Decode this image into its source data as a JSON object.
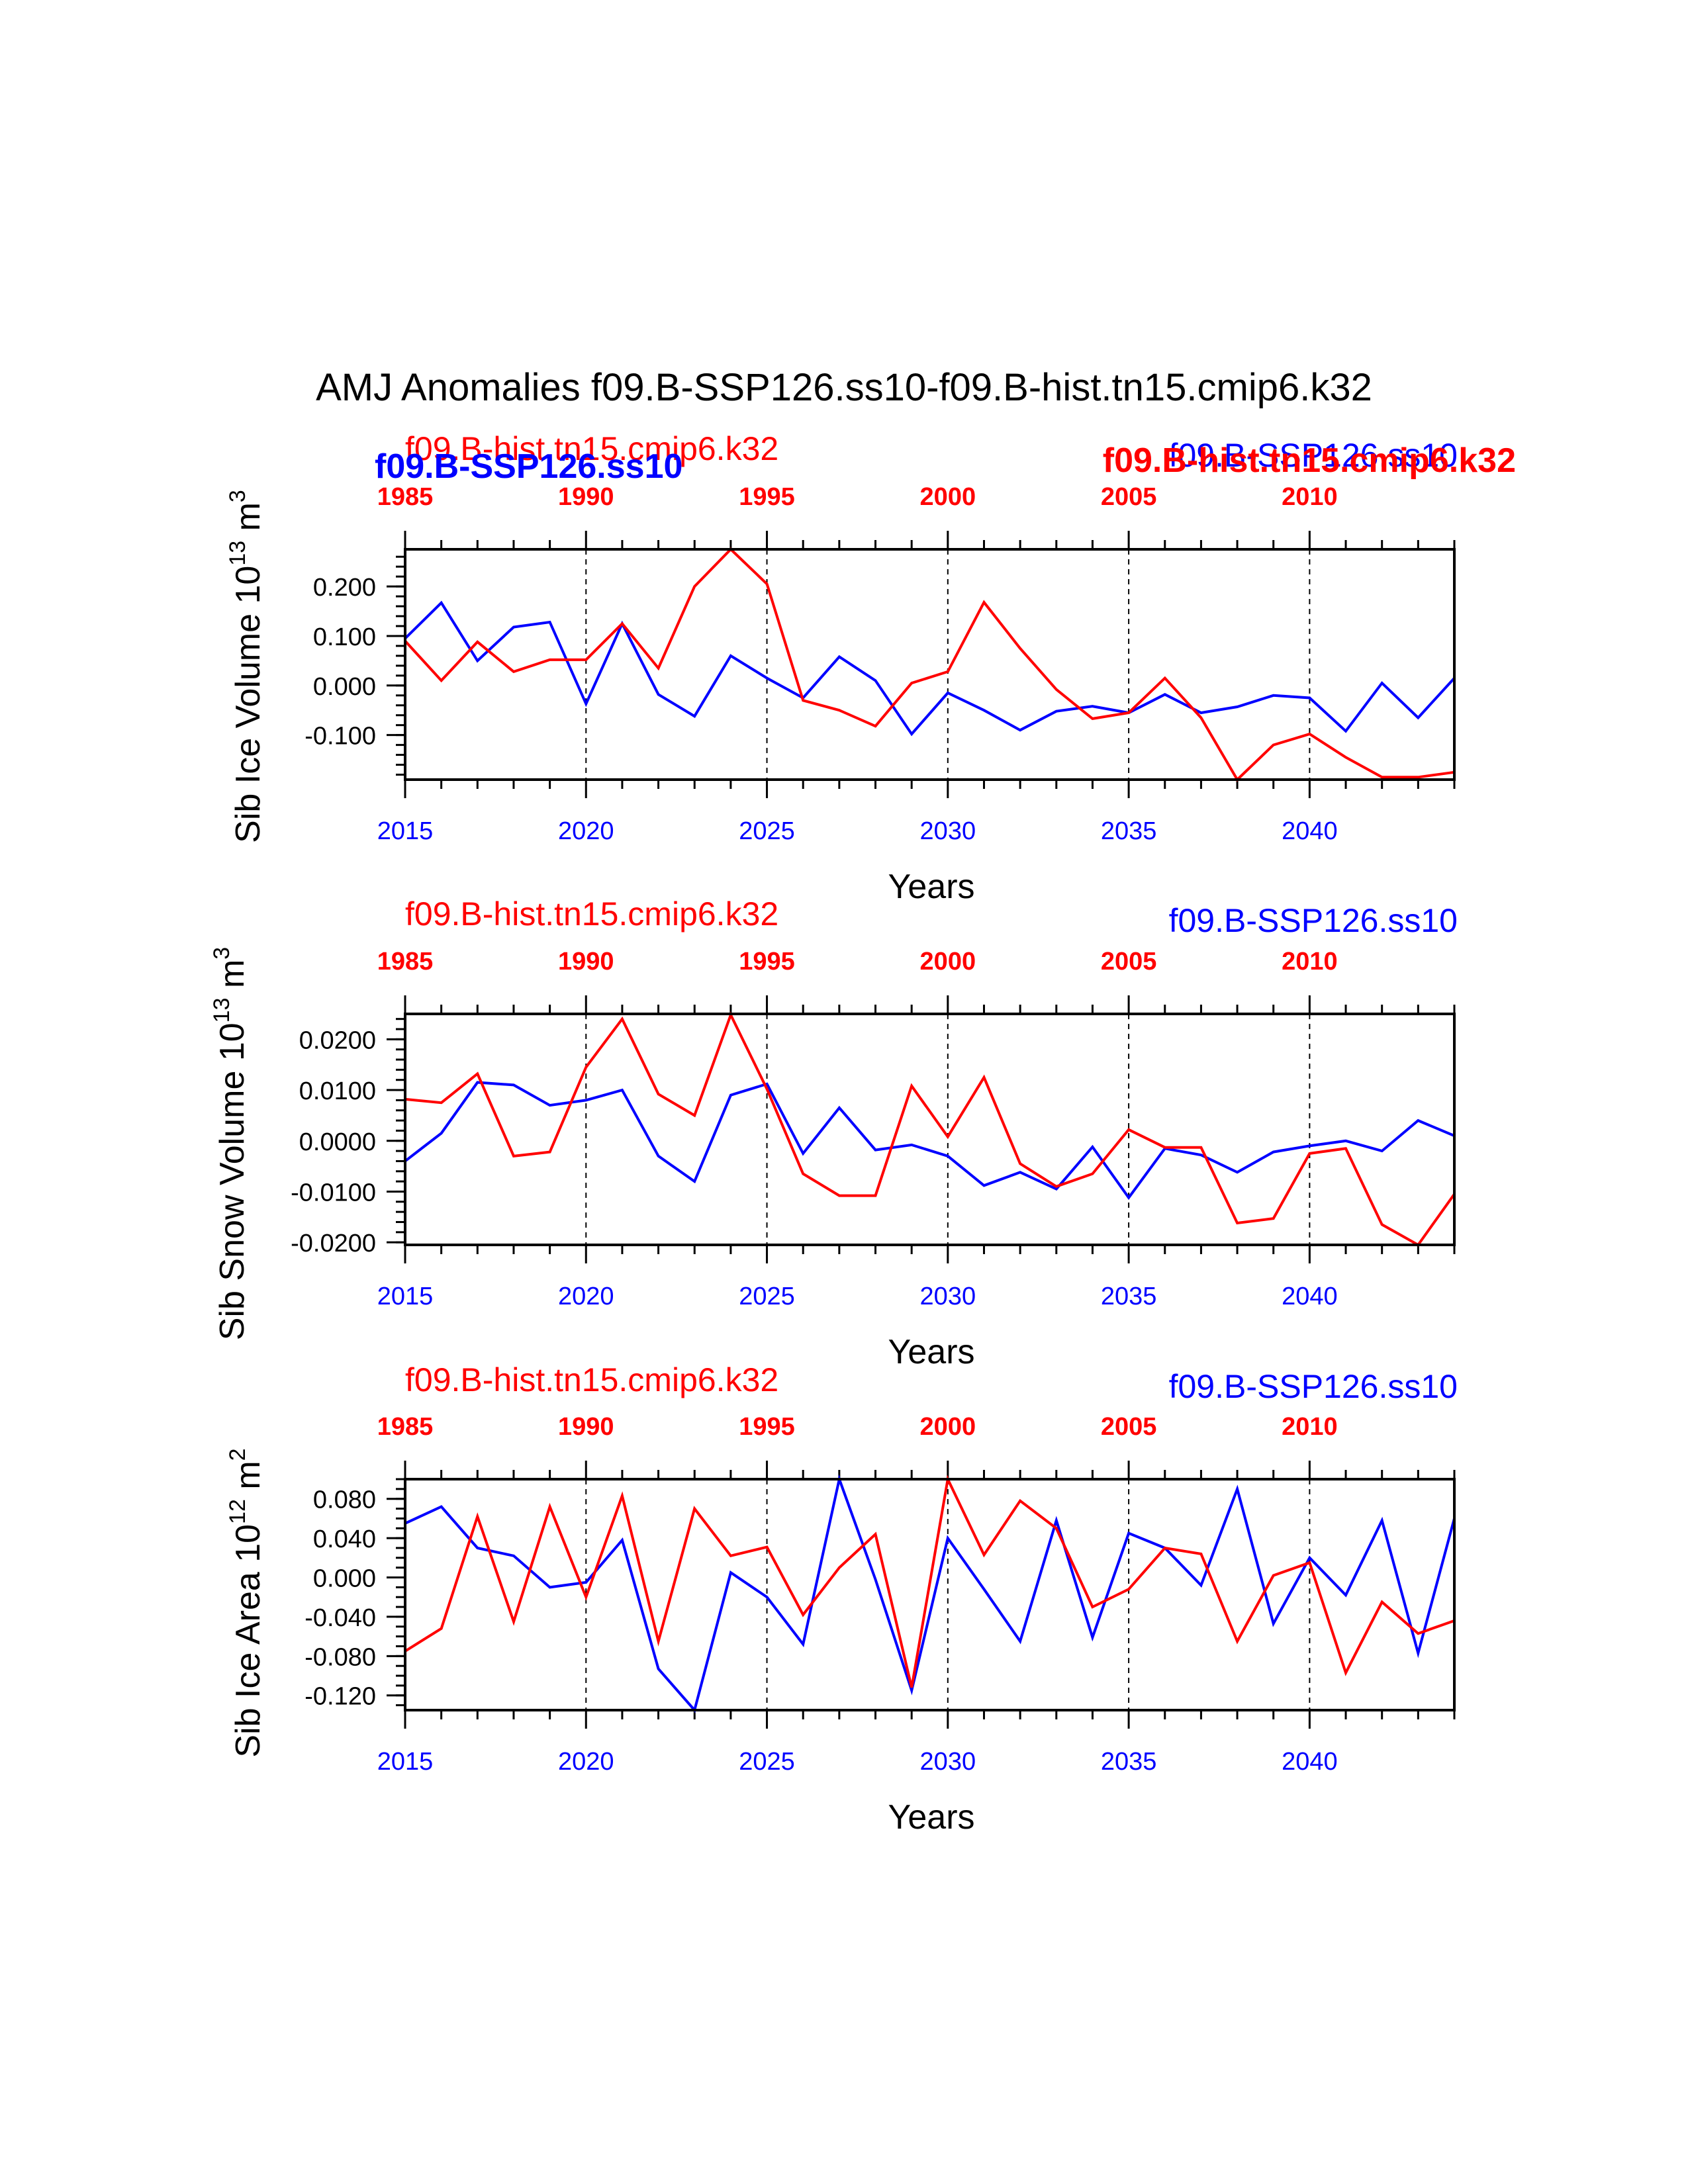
{
  "title": "AMJ Anomalies f09.B-SSP126.ss10-f09.B-hist.tn15.cmip6.k32",
  "colors": {
    "exp": "#0000ff",
    "ctrl": "#ff0000",
    "axis": "#000000"
  },
  "series_names": {
    "exp": "f09.B-SSP126.ss10",
    "ctrl": "f09.B-hist.tn15.cmip6.k32"
  },
  "xlabel": "Years",
  "bottom_ticks": [
    "2015",
    "2020",
    "2025",
    "2030",
    "2035",
    "2040"
  ],
  "top_ticks": [
    "1985",
    "1990",
    "1995",
    "2000",
    "2005",
    "2010"
  ],
  "chart_data": [
    {
      "type": "line",
      "ylabel_main": "Sib Ice Volume 10",
      "ylabel_exp": "13",
      "ylabel_unit": " m",
      "ylabel_unit_exp": "3",
      "x": [
        2015,
        2016,
        2017,
        2018,
        2019,
        2020,
        2021,
        2022,
        2023,
        2024,
        2025,
        2026,
        2027,
        2028,
        2029,
        2030,
        2031,
        2032,
        2033,
        2034,
        2035,
        2036,
        2037,
        2038,
        2039,
        2040,
        2041,
        2042,
        2043,
        2044
      ],
      "xlim": [
        2015,
        2044
      ],
      "ylim": [
        -0.19,
        0.275
      ],
      "yticks": [
        -0.1,
        0.0,
        0.1,
        0.2
      ],
      "ytick_labels": [
        "-0.100",
        "0.000",
        "0.100",
        "0.200"
      ],
      "minor_step": 0.02,
      "series": [
        {
          "name": "f09.B-SSP126.ss10",
          "color": "#0000ff",
          "values": [
            0.095,
            0.167,
            0.05,
            0.118,
            0.128,
            -0.037,
            0.125,
            -0.018,
            -0.062,
            0.06,
            0.015,
            -0.025,
            0.058,
            0.01,
            -0.098,
            -0.015,
            -0.05,
            -0.09,
            -0.052,
            -0.042,
            -0.055,
            -0.018,
            -0.055,
            -0.043,
            -0.02,
            -0.025,
            -0.092,
            0.005,
            -0.065,
            0.015
          ]
        },
        {
          "name": "f09.B-hist.tn15.cmip6.k32",
          "color": "#ff0000",
          "values": [
            0.09,
            0.01,
            0.088,
            0.028,
            0.052,
            0.052,
            0.125,
            0.035,
            0.2,
            0.275,
            0.205,
            -0.03,
            -0.05,
            -0.082,
            0.005,
            0.028,
            0.168,
            0.075,
            -0.008,
            -0.067,
            -0.055,
            0.015,
            -0.065,
            -0.19,
            -0.12,
            -0.098,
            -0.145,
            -0.185,
            -0.185,
            -0.175
          ]
        }
      ],
      "labels": {
        "left_red": "f09.B-hist.tn15.cmip6.k32",
        "left_blue": "f09.B-SSP126.ss10",
        "right_red": "f09.B-hist.tn15.cmip6.k32",
        "right_blue": "f09.B-SSP126.ss10"
      }
    },
    {
      "type": "line",
      "ylabel_main": "Sib Snow Volume 10",
      "ylabel_exp": "13",
      "ylabel_unit": " m",
      "ylabel_unit_exp": "3",
      "x": [
        2015,
        2016,
        2017,
        2018,
        2019,
        2020,
        2021,
        2022,
        2023,
        2024,
        2025,
        2026,
        2027,
        2028,
        2029,
        2030,
        2031,
        2032,
        2033,
        2034,
        2035,
        2036,
        2037,
        2038,
        2039,
        2040,
        2041,
        2042,
        2043,
        2044
      ],
      "xlim": [
        2015,
        2044
      ],
      "ylim": [
        -0.0205,
        0.025
      ],
      "yticks": [
        -0.02,
        -0.01,
        0.0,
        0.01,
        0.02
      ],
      "ytick_labels": [
        "-0.0200",
        "-0.0100",
        "0.0000",
        "0.0100",
        "0.0200"
      ],
      "minor_step": 0.002,
      "series": [
        {
          "name": "f09.B-SSP126.ss10",
          "color": "#0000ff",
          "values": [
            -0.004,
            0.0015,
            0.0115,
            0.011,
            0.007,
            0.008,
            0.01,
            -0.003,
            -0.008,
            0.009,
            0.0112,
            -0.0025,
            0.0065,
            -0.0018,
            -0.0008,
            -0.003,
            -0.0088,
            -0.0062,
            -0.0095,
            -0.0012,
            -0.0112,
            -0.0015,
            -0.0028,
            -0.0062,
            -0.0022,
            -0.001,
            0.0,
            -0.002,
            0.004,
            0.001
          ]
        },
        {
          "name": "f09.B-hist.tn15.cmip6.k32",
          "color": "#ff0000",
          "values": [
            0.0082,
            0.0075,
            0.0132,
            -0.003,
            -0.0022,
            0.0145,
            0.024,
            0.0092,
            0.005,
            0.0248,
            0.0102,
            -0.0065,
            -0.0108,
            -0.0108,
            0.0108,
            0.0008,
            0.0125,
            -0.0045,
            -0.009,
            -0.0065,
            0.0022,
            -0.0013,
            -0.0013,
            -0.0162,
            -0.0153,
            -0.0025,
            -0.0015,
            -0.0165,
            -0.0205,
            -0.0105
          ]
        }
      ],
      "labels": {
        "left_red": "f09.B-hist.tn15.cmip6.k32",
        "right_blue": "f09.B-SSP126.ss10"
      }
    },
    {
      "type": "line",
      "ylabel_main": "Sib Ice Area 10",
      "ylabel_exp": "12",
      "ylabel_unit": " m",
      "ylabel_unit_exp": "2",
      "x": [
        2015,
        2016,
        2017,
        2018,
        2019,
        2020,
        2021,
        2022,
        2023,
        2024,
        2025,
        2026,
        2027,
        2028,
        2029,
        2030,
        2031,
        2032,
        2033,
        2034,
        2035,
        2036,
        2037,
        2038,
        2039,
        2040,
        2041,
        2042,
        2043,
        2044
      ],
      "xlim": [
        2015,
        2044
      ],
      "ylim": [
        -0.135,
        0.1
      ],
      "yticks": [
        -0.12,
        -0.08,
        -0.04,
        0.0,
        0.04,
        0.08
      ],
      "ytick_labels": [
        "-0.120",
        "-0.080",
        "-0.040",
        "0.000",
        "0.040",
        "0.080"
      ],
      "minor_step": 0.01,
      "series": [
        {
          "name": "f09.B-SSP126.ss10",
          "color": "#0000ff",
          "values": [
            0.055,
            0.072,
            0.03,
            0.022,
            -0.01,
            -0.005,
            0.038,
            -0.093,
            -0.135,
            0.005,
            -0.02,
            -0.068,
            0.1,
            -0.002,
            -0.115,
            0.04,
            -0.012,
            -0.065,
            0.058,
            -0.061,
            0.045,
            0.03,
            -0.008,
            0.09,
            -0.047,
            0.02,
            -0.018,
            0.058,
            -0.077,
            0.06
          ]
        },
        {
          "name": "f09.B-hist.tn15.cmip6.k32",
          "color": "#ff0000",
          "values": [
            -0.075,
            -0.052,
            0.062,
            -0.045,
            0.072,
            -0.02,
            0.083,
            -0.065,
            0.07,
            0.022,
            0.031,
            -0.038,
            0.01,
            0.044,
            -0.112,
            0.1,
            0.023,
            0.078,
            0.05,
            -0.03,
            -0.012,
            0.03,
            0.024,
            -0.065,
            0.002,
            0.015,
            -0.097,
            -0.025,
            -0.057,
            -0.044
          ]
        }
      ],
      "labels": {
        "left_red": "f09.B-hist.tn15.cmip6.k32",
        "right_blue": "f09.B-SSP126.ss10"
      }
    }
  ]
}
